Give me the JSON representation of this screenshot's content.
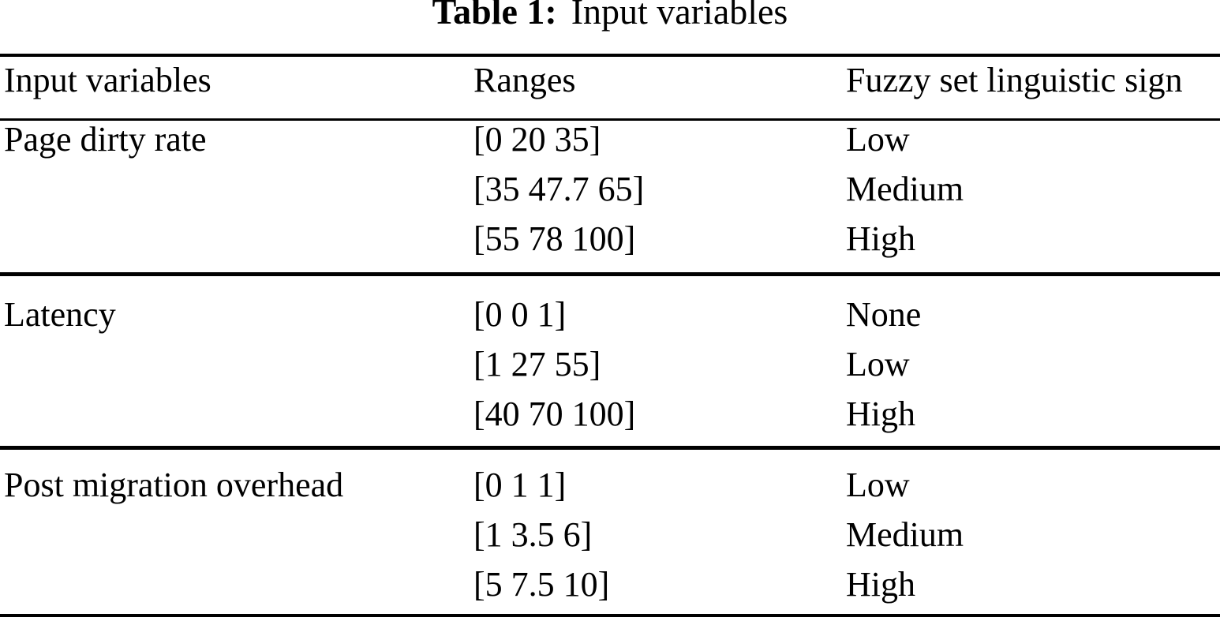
{
  "caption": {
    "label": "Table 1:",
    "title": "Input variables"
  },
  "table": {
    "columns": [
      "Input variables",
      "Ranges",
      "Fuzzy set linguistic sign"
    ],
    "groups": [
      {
        "variable": "Page dirty rate",
        "rows": [
          {
            "range": "[0 20 35]",
            "sign": "Low"
          },
          {
            "range": "[35 47.7 65]",
            "sign": "Medium"
          },
          {
            "range": "[55 78 100]",
            "sign": "High"
          }
        ]
      },
      {
        "variable": "Latency",
        "rows": [
          {
            "range": "[0 0 1]",
            "sign": "None"
          },
          {
            "range": "[1 27 55]",
            "sign": "Low"
          },
          {
            "range": "[40 70 100]",
            "sign": "High"
          }
        ]
      },
      {
        "variable": "Post migration overhead",
        "rows": [
          {
            "range": "[0 1 1]",
            "sign": "Low"
          },
          {
            "range": "[1 3.5 6]",
            "sign": "Medium"
          },
          {
            "range": "[5 7.5 10]",
            "sign": "High"
          }
        ]
      }
    ]
  },
  "colors": {
    "text": "#000000",
    "background": "#ffffff",
    "rule": "#000000"
  }
}
